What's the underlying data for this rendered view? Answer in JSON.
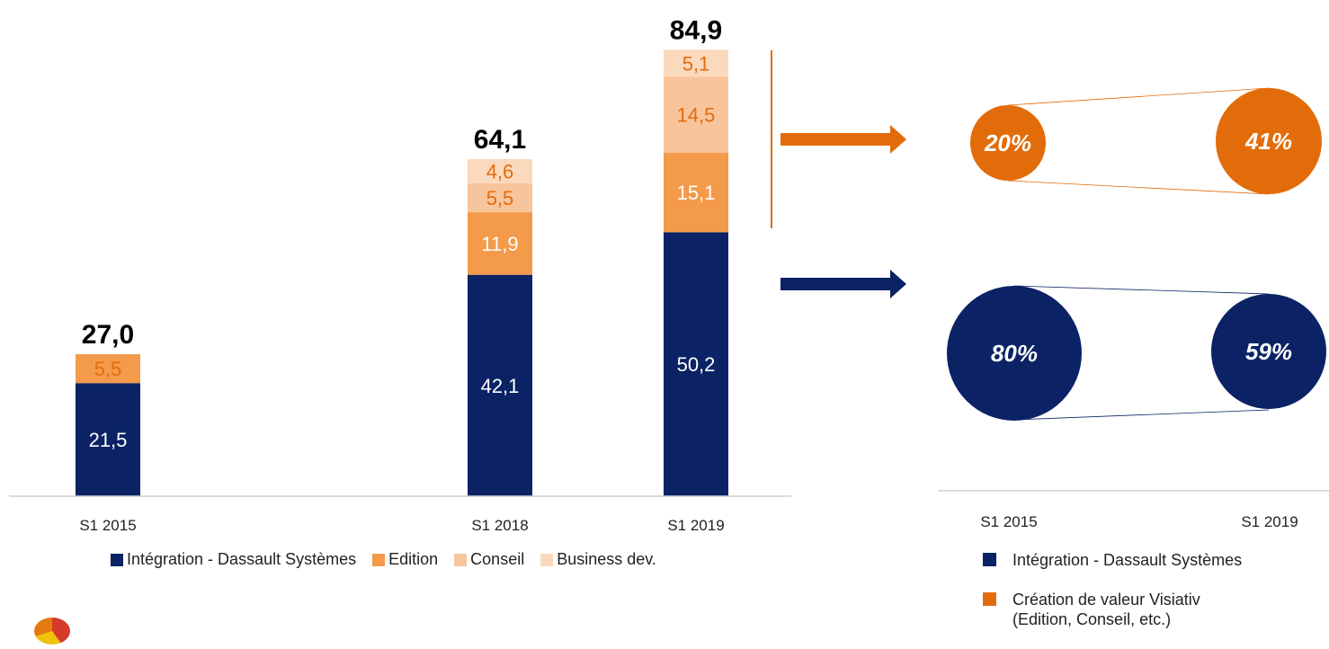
{
  "colors": {
    "integration": "#0b2265",
    "edition": "#f39a4b",
    "conseil": "#f8c49b",
    "business_dev": "#fbd9bd",
    "creation_valeur": "#e36c0a",
    "segment_label_light": "#ffffff",
    "segment_label_orange": "#e46c0a"
  },
  "chart_data": [
    {
      "type": "bar",
      "stacked": true,
      "categories": [
        "S1 2015",
        "S1 2018",
        "S1 2019"
      ],
      "series": [
        {
          "name": "Intégration - Dassault Systèmes",
          "values": [
            21.5,
            42.1,
            50.2
          ],
          "labels": [
            "21,5",
            "42,1",
            "50,2"
          ]
        },
        {
          "name": "Edition",
          "values": [
            5.5,
            11.9,
            15.1
          ],
          "labels": [
            "5,5",
            "11,9",
            "15,1"
          ]
        },
        {
          "name": "Conseil",
          "values": [
            null,
            5.5,
            14.5
          ],
          "labels": [
            "",
            "5,5",
            "14,5"
          ]
        },
        {
          "name": "Business dev.",
          "values": [
            null,
            4.6,
            5.1
          ],
          "labels": [
            "",
            "4,6",
            "5,1"
          ]
        }
      ],
      "totals": [
        27.0,
        64.1,
        84.9
      ],
      "total_labels": [
        "27,0",
        "64,1",
        "84,9"
      ],
      "legend": [
        "Intégration - Dassault Systèmes",
        "Edition",
        "Conseil",
        "Business dev."
      ],
      "legend_position": "bottom",
      "grid": false
    },
    {
      "type": "bubble-comparison",
      "categories": [
        "S1 2015",
        "S1 2019"
      ],
      "series": [
        {
          "name": "Création de valeur Visiativ (Edition, Conseil, etc.)",
          "values": [
            20,
            41
          ],
          "labels": [
            "20%",
            "41%"
          ]
        },
        {
          "name": "Intégration - Dassault Systèmes",
          "values": [
            80,
            59
          ],
          "labels": [
            "80%",
            "59%"
          ]
        }
      ],
      "legend": [
        "Intégration - Dassault Systèmes",
        "Création de valeur Visiativ",
        "(Edition, Conseil, etc.)"
      ],
      "legend_position": "bottom"
    }
  ]
}
